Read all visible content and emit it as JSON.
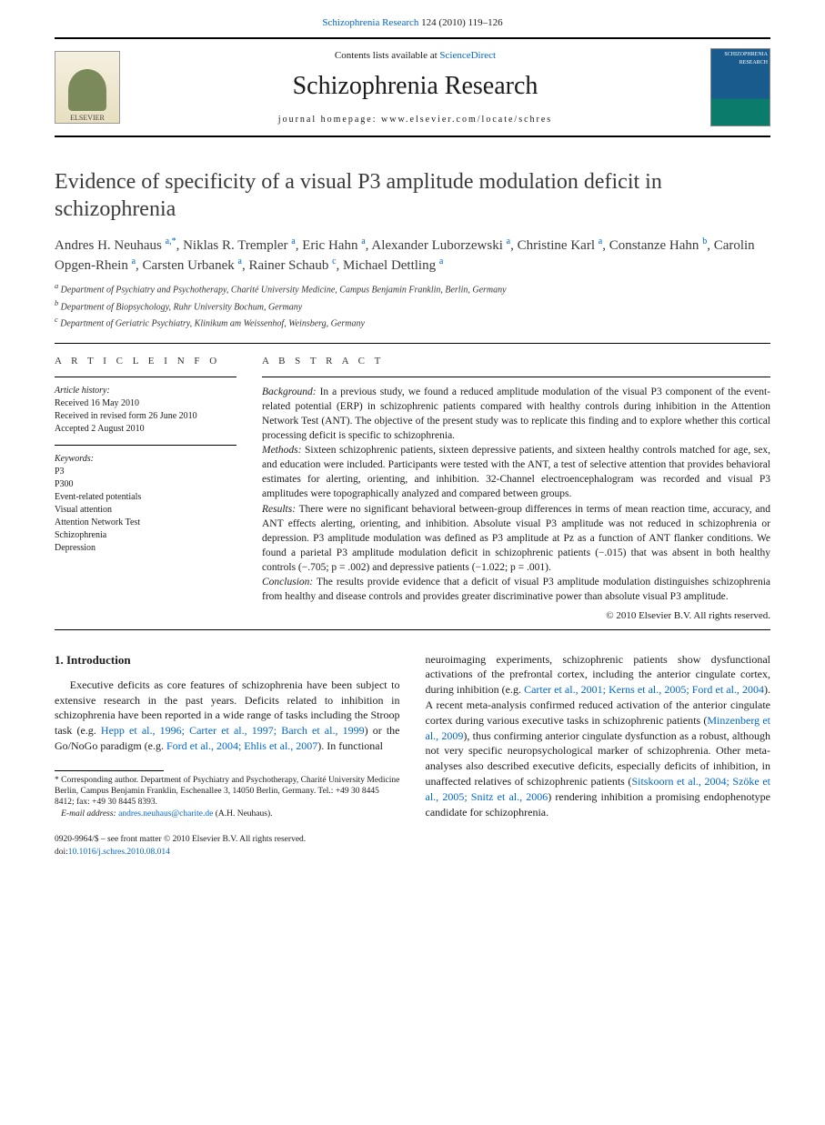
{
  "header": {
    "citation_prefix": "Schizophrenia Research",
    "citation_volume": " 124 (2010) 119–126"
  },
  "masthead": {
    "contents_prefix": "Contents lists available at ",
    "contents_link": "ScienceDirect",
    "journal": "Schizophrenia Research",
    "homepage_prefix": "journal homepage: ",
    "homepage_url": "www.elsevier.com/locate/schres",
    "elsevier": "ELSEVIER",
    "cover_label": "SCHIZOPHRENIA RESEARCH"
  },
  "title": "Evidence of specificity of a visual P3 amplitude modulation deficit in schizophrenia",
  "authors": [
    {
      "name": "Andres H. Neuhaus",
      "aff": "a,",
      "corr": "*"
    },
    {
      "name": "Niklas R. Trempler",
      "aff": "a"
    },
    {
      "name": "Eric Hahn",
      "aff": "a"
    },
    {
      "name": "Alexander Luborzewski",
      "aff": "a"
    },
    {
      "name": "Christine Karl",
      "aff": "a"
    },
    {
      "name": "Constanze Hahn",
      "aff": "b"
    },
    {
      "name": "Carolin Opgen-Rhein",
      "aff": "a"
    },
    {
      "name": "Carsten Urbanek",
      "aff": "a"
    },
    {
      "name": "Rainer Schaub",
      "aff": "c"
    },
    {
      "name": "Michael Dettling",
      "aff": "a"
    }
  ],
  "affiliations": {
    "a": "Department of Psychiatry and Psychotherapy, Charité University Medicine, Campus Benjamin Franklin, Berlin, Germany",
    "b": "Department of Biopsychology, Ruhr University Bochum, Germany",
    "c": "Department of Geriatric Psychiatry, Klinikum am Weissenhof, Weinsberg, Germany"
  },
  "article_info": {
    "label": "A R T I C L E   I N F O",
    "history_label": "Article history:",
    "received": "Received 16 May 2010",
    "revised": "Received in revised form 26 June 2010",
    "accepted": "Accepted 2 August 2010",
    "keywords_label": "Keywords:",
    "keywords": [
      "P3",
      "P300",
      "Event-related potentials",
      "Visual attention",
      "Attention Network Test",
      "Schizophrenia",
      "Depression"
    ]
  },
  "abstract": {
    "label": "A B S T R A C T",
    "background_head": "Background:",
    "background": " In a previous study, we found a reduced amplitude modulation of the visual P3 component of the event-related potential (ERP) in schizophrenic patients compared with healthy controls during inhibition in the Attention Network Test (ANT). The objective of the present study was to replicate this finding and to explore whether this cortical processing deficit is specific to schizophrenia.",
    "methods_head": "Methods:",
    "methods": " Sixteen schizophrenic patients, sixteen depressive patients, and sixteen healthy controls matched for age, sex, and education were included. Participants were tested with the ANT, a test of selective attention that provides behavioral estimates for alerting, orienting, and inhibition. 32-Channel electroencephalogram was recorded and visual P3 amplitudes were topographically analyzed and compared between groups.",
    "results_head": "Results:",
    "results": " There were no significant behavioral between-group differences in terms of mean reaction time, accuracy, and ANT effects alerting, orienting, and inhibition. Absolute visual P3 amplitude was not reduced in schizophrenia or depression. P3 amplitude modulation was defined as P3 amplitude at Pz as a function of ANT flanker conditions. We found a parietal P3 amplitude modulation deficit in schizophrenic patients (−.015) that was absent in both healthy controls (−.705; p = .002) and depressive patients (−1.022; p = .001).",
    "conclusion_head": "Conclusion:",
    "conclusion": " The results provide evidence that a deficit of visual P3 amplitude modulation distinguishes schizophrenia from healthy and disease controls and provides greater discriminative power than absolute visual P3 amplitude.",
    "copyright": "© 2010 Elsevier B.V. All rights reserved."
  },
  "intro": {
    "heading": "1. Introduction",
    "col1_text_pre": "Executive deficits as core features of schizophrenia have been subject to extensive research in the past years. Deficits related to inhibition in schizophrenia have been reported in a wide range of tasks including the Stroop task (e.g. ",
    "col1_link1": "Hepp et al., 1996; Carter et al., 1997; Barch et al., 1999",
    "col1_text_mid": ") or the Go/NoGo paradigm (e.g. ",
    "col1_link2": "Ford et al., 2004; Ehlis et al., 2007",
    "col1_text_post": "). In functional",
    "col2_text_pre": "neuroimaging experiments, schizophrenic patients show dysfunctional activations of the prefrontal cortex, including the anterior cingulate cortex, during inhibition (e.g. ",
    "col2_link1": "Carter et al., 2001; Kerns et al., 2005; Ford et al., 2004",
    "col2_text_mid1": "). A recent meta-analysis confirmed reduced activation of the anterior cingulate cortex during various executive tasks in schizophrenic patients (",
    "col2_link2": "Minzenberg et al., 2009",
    "col2_text_mid2": "), thus confirming anterior cingulate dysfunction as a robust, although not very specific neuropsychological marker of schizophrenia. Other meta-analyses also described executive deficits, especially deficits of inhibition, in unaffected relatives of schizophrenic patients (",
    "col2_link3": "Sitskoorn et al., 2004; Szöke et al., 2005; Snitz et al., 2006",
    "col2_text_post": ") rendering inhibition a promising endophenotype candidate for schizophrenia."
  },
  "footnote": {
    "corr_symbol": "* ",
    "corr_text": "Corresponding author. Department of Psychiatry and Psychotherapy, Charité University Medicine Berlin, Campus Benjamin Franklin, Eschenallee 3, 14050 Berlin, Germany. Tel.: +49 30 8445 8412; fax: +49 30 8445 8393.",
    "email_label": "E-mail address: ",
    "email": "andres.neuhaus@charite.de",
    "email_suffix": " (A.H. Neuhaus)."
  },
  "footer": {
    "issn": "0920-9964/$ – see front matter © 2010 Elsevier B.V. All rights reserved.",
    "doi_label": "doi:",
    "doi": "10.1016/j.schres.2010.08.014"
  },
  "colors": {
    "link": "#0066cc",
    "text": "#1a1a1a",
    "rule": "#000000"
  }
}
